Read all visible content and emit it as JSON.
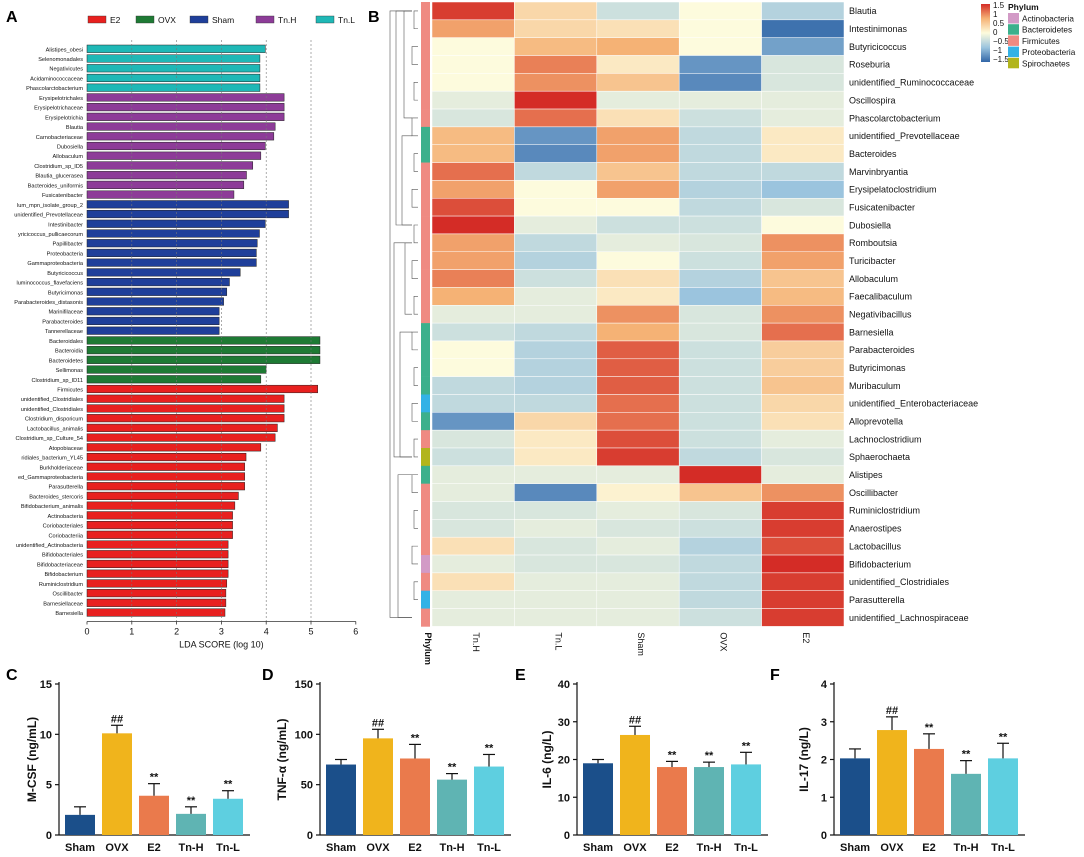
{
  "panels": {
    "A": "A",
    "B": "B",
    "C": "C",
    "D": "D",
    "E": "E",
    "F": "F"
  },
  "colors": {
    "E2": "#e8201f",
    "OVX": "#1e7a34",
    "Sham": "#1f3f9a",
    "Tn.H": "#8d3c98",
    "Tn.L": "#1fb8b6",
    "bar_Sham": "#1b4f8a",
    "bar_OVX": "#f0b41c",
    "bar_E2": "#ea7a4c",
    "bar_TnH": "#5fb4b3",
    "bar_TnL": "#5ecfe0"
  },
  "chart_data": [
    {
      "panel": "A",
      "type": "bar",
      "orientation": "horizontal",
      "xlabel": "LDA SCORE (log 10)",
      "xlim": [
        0,
        6
      ],
      "xticks": [
        "0",
        "1",
        "2",
        "3",
        "4",
        "5",
        "6"
      ],
      "legend": [
        "E2",
        "OVX",
        "Sham",
        "Tn.H",
        "Tn.L"
      ],
      "series": [
        {
          "name": "Tn.L",
          "items": [
            {
              "label": "Alistipes_obesi",
              "value": 3.98
            },
            {
              "label": "Selenomonadales",
              "value": 3.86
            },
            {
              "label": "Negativicutes",
              "value": 3.86
            },
            {
              "label": "Acidaminococcaceae",
              "value": 3.86
            },
            {
              "label": "Phascolarctobacterium",
              "value": 3.86
            }
          ]
        },
        {
          "name": "Tn.H",
          "items": [
            {
              "label": "Erysipelotrichales",
              "value": 4.4
            },
            {
              "label": "Erysipelotrichaceae",
              "value": 4.4
            },
            {
              "label": "Erysipelotrichia",
              "value": 4.4
            },
            {
              "label": "Blautia",
              "value": 4.2
            },
            {
              "label": "Carnobacteriaceae",
              "value": 4.17
            },
            {
              "label": "Dubosiella",
              "value": 3.98
            },
            {
              "label": "Allobaculum",
              "value": 3.88
            },
            {
              "label": "Clostridium_sp_ID5",
              "value": 3.7
            },
            {
              "label": "Blautia_glucerasea",
              "value": 3.56
            },
            {
              "label": "Bacteroides_uniformis",
              "value": 3.5
            },
            {
              "label": "Fusicatenibacter",
              "value": 3.28
            }
          ]
        },
        {
          "name": "Sham",
          "items": [
            {
              "label": "lum_mpn_isolate_group_2",
              "value": 4.5
            },
            {
              "label": "unidentified_Prevotellaceae",
              "value": 4.5
            },
            {
              "label": "Intestinibacter",
              "value": 3.98
            },
            {
              "label": "yricicoccus_pullicaecorum",
              "value": 3.85
            },
            {
              "label": "Papillibacter",
              "value": 3.8
            },
            {
              "label": "Proteobacteria",
              "value": 3.78
            },
            {
              "label": "Gammaproteobacteria",
              "value": 3.78
            },
            {
              "label": "Butyricicoccus",
              "value": 3.42
            },
            {
              "label": "luminococcus_flavefaciens",
              "value": 3.18
            },
            {
              "label": "Butyricimonas",
              "value": 3.12
            },
            {
              "label": "Parabacteroides_distasonis",
              "value": 3.05
            },
            {
              "label": "Marinifilaceae",
              "value": 2.95
            },
            {
              "label": "Parabacteroides",
              "value": 2.95
            },
            {
              "label": "Tannerellaceae",
              "value": 2.95
            }
          ]
        },
        {
          "name": "OVX",
          "items": [
            {
              "label": "Bacteroidales",
              "value": 5.2
            },
            {
              "label": "Bacteroidia",
              "value": 5.2
            },
            {
              "label": "Bacteroidetes",
              "value": 5.2
            },
            {
              "label": "Sellimonas",
              "value": 4.0
            },
            {
              "label": "Clostridium_sp_ID11",
              "value": 3.88
            }
          ]
        },
        {
          "name": "E2",
          "items": [
            {
              "label": "Firmicutes",
              "value": 5.15
            },
            {
              "label": "unidentified_Clostridiales",
              "value": 4.4
            },
            {
              "label": "unidentified_Clostridiales",
              "value": 4.4
            },
            {
              "label": "Clostridium_disporicum",
              "value": 4.4
            },
            {
              "label": "Lactobacillus_animalis",
              "value": 4.25
            },
            {
              "label": "Clostridium_sp_Culture_54",
              "value": 4.2
            },
            {
              "label": "Atopobiaceae",
              "value": 3.88
            },
            {
              "label": "ridiales_bacterium_YL45",
              "value": 3.55
            },
            {
              "label": "Burkholderiaceae",
              "value": 3.52
            },
            {
              "label": "ed_Gammaproteobacteria",
              "value": 3.52
            },
            {
              "label": "Parasutterella",
              "value": 3.52
            },
            {
              "label": "Bacteroides_stercoris",
              "value": 3.38
            },
            {
              "label": "Bifidobacterium_animalis",
              "value": 3.3
            },
            {
              "label": "Actinobacteria",
              "value": 3.25
            },
            {
              "label": "Coriobacteriales",
              "value": 3.25
            },
            {
              "label": "Coriobacteriia",
              "value": 3.25
            },
            {
              "label": "unidentified_Actinobacteria",
              "value": 3.15
            },
            {
              "label": "Bifidobacteriales",
              "value": 3.15
            },
            {
              "label": "Bifidobacteriaceae",
              "value": 3.15
            },
            {
              "label": "Bifidobacterium",
              "value": 3.15
            },
            {
              "label": "Ruminiclostridium",
              "value": 3.12
            },
            {
              "label": "Oscillibacter",
              "value": 3.1
            },
            {
              "label": "Barnesiellaceae",
              "value": 3.1
            },
            {
              "label": "Barnesiella",
              "value": 3.08
            }
          ]
        }
      ]
    },
    {
      "panel": "B",
      "type": "heatmap",
      "columns": [
        "Tn.H",
        "Tn.L",
        "Sham",
        "OVX",
        "E2"
      ],
      "column_axis_label": "Phylum",
      "legend_title": "Phylum",
      "phylum_legend": [
        {
          "name": "Actinobacteria",
          "color": "#d29ac6"
        },
        {
          "name": "Bacteroidetes",
          "color": "#3cb08c"
        },
        {
          "name": "Firmicutes",
          "color": "#ef8a82"
        },
        {
          "name": "Proteobacteria",
          "color": "#33b2e6"
        },
        {
          "name": "Spirochaetes",
          "color": "#b2b51c"
        }
      ],
      "scale_ticks": [
        "1.5",
        "1",
        "0.5",
        "0",
        "−0.5",
        "−1",
        "−1.5"
      ],
      "rows": [
        {
          "name": "Blautia",
          "phylum": "Firmicutes",
          "values": [
            1.5,
            0.4,
            -0.4,
            0.0,
            -0.6
          ]
        },
        {
          "name": "Intestinimonas",
          "phylum": "Firmicutes",
          "values": [
            0.9,
            0.4,
            0.3,
            0.0,
            -1.5
          ]
        },
        {
          "name": "Butyricicoccus",
          "phylum": "Firmicutes",
          "values": [
            0.0,
            0.7,
            0.8,
            0.0,
            -1.1
          ]
        },
        {
          "name": "Roseburia",
          "phylum": "Firmicutes",
          "values": [
            0.0,
            1.1,
            0.2,
            -1.2,
            -0.3
          ]
        },
        {
          "name": "unidentified_Ruminococcaceae",
          "phylum": "Firmicutes",
          "values": [
            0.0,
            1.0,
            0.6,
            -1.3,
            -0.3
          ]
        },
        {
          "name": "Oscillospira",
          "phylum": "Firmicutes",
          "values": [
            -0.2,
            1.6,
            -0.2,
            -0.2,
            -0.2
          ]
        },
        {
          "name": "Phascolarctobacterium",
          "phylum": "Firmicutes",
          "values": [
            -0.3,
            1.2,
            0.3,
            -0.4,
            -0.2
          ]
        },
        {
          "name": "unidentified_Prevotellaceae",
          "phylum": "Bacteroidetes",
          "values": [
            0.7,
            -1.2,
            0.9,
            -0.5,
            0.2
          ]
        },
        {
          "name": "Bacteroides",
          "phylum": "Bacteroidetes",
          "values": [
            0.7,
            -1.3,
            0.9,
            -0.5,
            0.2
          ]
        },
        {
          "name": "Marvinbryantia",
          "phylum": "Firmicutes",
          "values": [
            1.2,
            -0.5,
            0.6,
            -0.5,
            -0.5
          ]
        },
        {
          "name": "Erysipelatoclostridium",
          "phylum": "Firmicutes",
          "values": [
            0.9,
            0.0,
            0.9,
            -0.6,
            -0.8
          ]
        },
        {
          "name": "Fusicatenibacter",
          "phylum": "Firmicutes",
          "values": [
            1.4,
            0.0,
            0.0,
            -0.5,
            -0.3
          ]
        },
        {
          "name": "Dubosiella",
          "phylum": "Firmicutes",
          "values": [
            1.6,
            -0.2,
            -0.4,
            -0.4,
            0.0
          ]
        },
        {
          "name": "Romboutsia",
          "phylum": "Firmicutes",
          "values": [
            0.9,
            -0.5,
            -0.2,
            -0.3,
            1.0
          ]
        },
        {
          "name": "Turicibacter",
          "phylum": "Firmicutes",
          "values": [
            0.9,
            -0.6,
            0.0,
            -0.4,
            0.9
          ]
        },
        {
          "name": "Allobaculum",
          "phylum": "Firmicutes",
          "values": [
            1.1,
            -0.4,
            0.3,
            -0.6,
            0.6
          ]
        },
        {
          "name": "Faecalibaculum",
          "phylum": "Firmicutes",
          "values": [
            0.8,
            -0.2,
            0.2,
            -0.8,
            0.7
          ]
        },
        {
          "name": "Negativibacillus",
          "phylum": "Firmicutes",
          "values": [
            -0.2,
            -0.2,
            1.0,
            -0.3,
            1.0
          ]
        },
        {
          "name": "Barnesiella",
          "phylum": "Bacteroidetes",
          "values": [
            -0.4,
            -0.5,
            0.8,
            -0.3,
            1.2
          ]
        },
        {
          "name": "Parabacteroides",
          "phylum": "Bacteroidetes",
          "values": [
            0.0,
            -0.6,
            1.3,
            -0.4,
            0.5
          ]
        },
        {
          "name": "Butyricimonas",
          "phylum": "Bacteroidetes",
          "values": [
            0.0,
            -0.6,
            1.3,
            -0.4,
            0.5
          ]
        },
        {
          "name": "Muribaculum",
          "phylum": "Bacteroidetes",
          "values": [
            -0.5,
            -0.6,
            1.3,
            -0.4,
            0.6
          ]
        },
        {
          "name": "unidentified_Enterobacteriaceae",
          "phylum": "Proteobacteria",
          "values": [
            -0.5,
            -0.5,
            1.2,
            -0.4,
            0.4
          ]
        },
        {
          "name": "Alloprevotella",
          "phylum": "Bacteroidetes",
          "values": [
            -1.2,
            0.4,
            1.2,
            -0.4,
            0.3
          ]
        },
        {
          "name": "Lachnoclostridium",
          "phylum": "Firmicutes",
          "values": [
            -0.3,
            0.2,
            1.4,
            -0.4,
            -0.2
          ]
        },
        {
          "name": "Sphaerochaeta",
          "phylum": "Spirochaetes",
          "values": [
            -0.4,
            0.2,
            1.5,
            -0.5,
            -0.3
          ]
        },
        {
          "name": "Alistipes",
          "phylum": "Bacteroidetes",
          "values": [
            -0.2,
            -0.2,
            -0.2,
            1.6,
            -0.2
          ]
        },
        {
          "name": "Oscillibacter",
          "phylum": "Firmicutes",
          "values": [
            -0.2,
            -1.3,
            0.1,
            0.6,
            1.0
          ]
        },
        {
          "name": "Ruminiclostridium",
          "phylum": "Firmicutes",
          "values": [
            -0.3,
            -0.3,
            -0.2,
            -0.3,
            1.5
          ]
        },
        {
          "name": "Anaerostipes",
          "phylum": "Firmicutes",
          "values": [
            -0.3,
            -0.2,
            -0.3,
            -0.4,
            1.5
          ]
        },
        {
          "name": "Lactobacillus",
          "phylum": "Firmicutes",
          "values": [
            0.3,
            -0.3,
            -0.2,
            -0.6,
            1.4
          ]
        },
        {
          "name": "Bifidobacterium",
          "phylum": "Actinobacteria",
          "values": [
            -0.2,
            -0.3,
            -0.3,
            -0.5,
            1.6
          ]
        },
        {
          "name": "unidentified_Clostridiales",
          "phylum": "Firmicutes",
          "values": [
            0.3,
            -0.2,
            -0.2,
            -0.5,
            1.5
          ]
        },
        {
          "name": "Parasutterella",
          "phylum": "Proteobacteria",
          "values": [
            -0.2,
            -0.2,
            -0.2,
            -0.5,
            1.5
          ]
        },
        {
          "name": "unidentified_Lachnospiraceae",
          "phylum": "Firmicutes",
          "values": [
            -0.2,
            -0.2,
            -0.2,
            -0.4,
            1.5
          ]
        }
      ]
    },
    {
      "panel": "C",
      "type": "bar",
      "ylabel": "M-CSF (ng/mL)",
      "ylim": [
        0,
        15
      ],
      "yticks": [
        "0",
        "5",
        "10",
        "15"
      ],
      "categories": [
        "Sham",
        "OVX",
        "E2",
        "Tn-H",
        "Tn-L"
      ],
      "values": [
        2.0,
        10.1,
        3.9,
        2.1,
        3.6
      ],
      "errors": [
        0.8,
        0.8,
        1.2,
        0.7,
        0.8
      ],
      "annotations": [
        "",
        "##",
        "**",
        "**",
        "**"
      ]
    },
    {
      "panel": "D",
      "type": "bar",
      "ylabel": "TNF-α (ng/mL)",
      "ylim": [
        0,
        150
      ],
      "yticks": [
        "0",
        "50",
        "100",
        "150"
      ],
      "categories": [
        "Sham",
        "OVX",
        "E2",
        "Tn-H",
        "Tn-L"
      ],
      "values": [
        70,
        96,
        76,
        55,
        68
      ],
      "errors": [
        5,
        9,
        14,
        6,
        12
      ],
      "annotations": [
        "",
        "##",
        "**",
        "**",
        "**"
      ]
    },
    {
      "panel": "E",
      "type": "bar",
      "ylabel": "IL-6 (ng/L)",
      "ylim": [
        0,
        40
      ],
      "yticks": [
        "0",
        "10",
        "20",
        "30",
        "40"
      ],
      "categories": [
        "Sham",
        "OVX",
        "E2",
        "Tn-H",
        "Tn-L"
      ],
      "values": [
        19,
        26.5,
        18,
        18,
        18.7
      ],
      "errors": [
        1,
        2.3,
        1.5,
        1.3,
        3.2
      ],
      "annotations": [
        "",
        "##",
        "**",
        "**",
        "**"
      ]
    },
    {
      "panel": "F",
      "type": "bar",
      "ylabel": "IL-17 (ng/L)",
      "ylim": [
        0,
        4
      ],
      "yticks": [
        "0",
        "1",
        "2",
        "3",
        "4"
      ],
      "categories": [
        "Sham",
        "OVX",
        "E2",
        "Tn-H",
        "Tn-L"
      ],
      "values": [
        2.03,
        2.78,
        2.28,
        1.62,
        2.03
      ],
      "errors": [
        0.25,
        0.35,
        0.4,
        0.35,
        0.4
      ],
      "annotations": [
        "",
        "##",
        "**",
        "**",
        "**"
      ]
    }
  ]
}
